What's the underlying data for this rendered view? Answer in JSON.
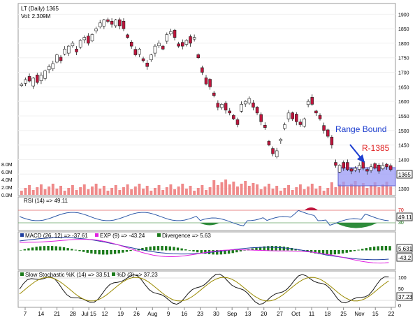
{
  "header": {
    "symbol_line": "LT (Daily) 1365",
    "volume_line": "Vol: 2.309M"
  },
  "colors": {
    "up": "#ffffff",
    "down": "#c0143c",
    "volume": "#ef8a8a",
    "rsi_line": "#2e5aa8",
    "rsi_fill_over": "#c0143c",
    "rsi_fill_under": "#2e8b3a",
    "macd_line": "#1f3f9f",
    "signal_line": "#e020e0",
    "hist": "#1a7a1a",
    "stoch_k": "#1a1a1a",
    "stoch_d": "#9a8a00",
    "range_box": "#8c8cf0",
    "annotation_blue": "#1e3fd0",
    "annotation_red": "#e02020"
  },
  "annotations": {
    "range_label": "Range Bound",
    "resistance_label": "R-1385"
  },
  "rsi_panel": {
    "title": "RSI (14) => 49.11",
    "current": "49.11",
    "levels": [
      "70",
      "30"
    ]
  },
  "macd_panel": {
    "title_macd": "MACD (26, 12) => -37.61",
    "title_exp": "EXP (9) => -43.24",
    "title_div": "Divergence => 5.63",
    "current_div": "5.631",
    "current_macd": "-43.2"
  },
  "stoch_panel": {
    "title_k": "Slow Stochastic %K (14) => 33.51",
    "title_d": "%D (3) => 37.23",
    "current": "37.23",
    "levels": [
      "100",
      "50",
      "0"
    ]
  },
  "chart_data": [
    {
      "type": "candlestick",
      "title": "LT (Daily) 1365",
      "ylim": [
        1300,
        1920
      ],
      "y_ticks": [
        "1900",
        "1850",
        "1800",
        "1750",
        "1700",
        "1650",
        "1600",
        "1550",
        "1500",
        "1450",
        "1400",
        "1350",
        "1300"
      ],
      "last_price_label": "1365",
      "x_ticks": [
        "7",
        "14",
        "21",
        "28",
        "Jul 15",
        "12",
        "19",
        "26",
        "Aug",
        "9",
        "16",
        "23",
        "30",
        "Sep",
        "13",
        "20",
        "27",
        "Oct",
        "11",
        "18",
        "25",
        "Nov",
        "15",
        "22"
      ],
      "candles_close": [
        1660,
        1675,
        1670,
        1680,
        1665,
        1690,
        1705,
        1720,
        1730,
        1760,
        1740,
        1780,
        1790,
        1800,
        1770,
        1810,
        1820,
        1800,
        1830,
        1850,
        1870,
        1880,
        1875,
        1865,
        1880,
        1860,
        1850,
        1820,
        1790,
        1760,
        1780,
        1740,
        1720,
        1760,
        1790,
        1800,
        1780,
        1830,
        1840,
        1820,
        1790,
        1790,
        1810,
        1800,
        1820,
        1750,
        1700,
        1660,
        1650,
        1620,
        1580,
        1590,
        1570,
        1560,
        1540,
        1520,
        1590,
        1600,
        1610,
        1580,
        1560,
        1530,
        1510,
        1450,
        1420,
        1430,
        1470,
        1520,
        1560,
        1540,
        1530,
        1520,
        1540,
        1600,
        1590,
        1560,
        1540,
        1500,
        1480,
        1450,
        1380,
        1380,
        1370,
        1365,
        1360,
        1370,
        1380,
        1370,
        1360,
        1375,
        1370,
        1360,
        1380,
        1375,
        1365
      ],
      "candles_up": [
        1,
        1,
        0,
        1,
        0,
        1,
        1,
        1,
        1,
        1,
        0,
        1,
        1,
        1,
        0,
        1,
        1,
        0,
        1,
        1,
        1,
        1,
        0,
        0,
        1,
        0,
        0,
        0,
        0,
        0,
        1,
        0,
        0,
        1,
        1,
        1,
        0,
        1,
        1,
        0,
        0,
        0,
        1,
        0,
        1,
        0,
        0,
        0,
        0,
        0,
        0,
        1,
        0,
        0,
        0,
        0,
        1,
        1,
        1,
        0,
        0,
        0,
        0,
        0,
        0,
        1,
        1,
        1,
        1,
        0,
        0,
        0,
        1,
        1,
        0,
        0,
        0,
        0,
        0,
        0,
        0,
        1,
        0,
        0,
        0,
        1,
        1,
        0,
        0,
        1,
        0,
        0,
        1,
        0,
        0
      ]
    },
    {
      "type": "bar",
      "title": "Volume",
      "y_ticks": [
        "8.0M",
        "6.0M",
        "4.0M",
        "2.0M",
        "0.0M"
      ],
      "ylim": [
        0,
        8
      ]
    },
    {
      "type": "line",
      "title": "RSI (14) => 49.11",
      "ylim": [
        0,
        100
      ]
    },
    {
      "type": "line",
      "title": "MACD (26, 12) => -37.61"
    },
    {
      "type": "line",
      "title": "Slow Stochastic %K (14) => 33.51",
      "ylim": [
        0,
        100
      ]
    }
  ]
}
